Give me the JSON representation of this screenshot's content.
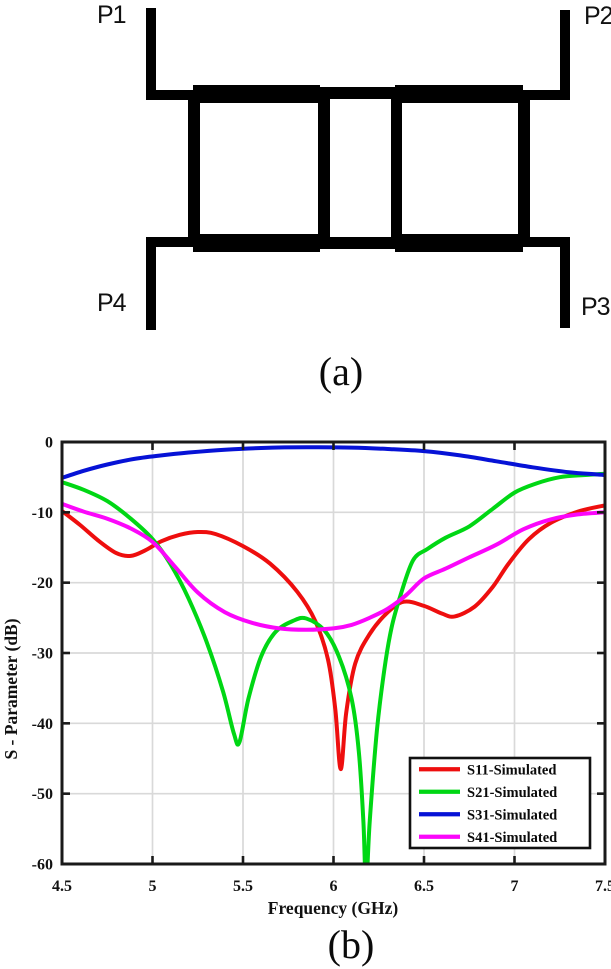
{
  "figure": {
    "panel_a": {
      "caption": "(a)",
      "description": "microstrip-coupler-layout",
      "ports": {
        "p1": "P1",
        "p2": "P2",
        "p3": "P3",
        "p4": "P4"
      }
    },
    "panel_b": {
      "caption": "(b)"
    }
  },
  "chart_data": {
    "type": "line",
    "title": "",
    "xlabel": "Frequency (GHz)",
    "ylabel": "S - Parameter (dB)",
    "xlim": [
      4.5,
      7.5
    ],
    "ylim": [
      -60,
      0
    ],
    "grid": true,
    "legend_position": "lower right",
    "x_ticks": [
      4.5,
      5,
      5.5,
      6,
      6.5,
      7,
      7.5
    ],
    "x_tick_labels": [
      "4.5",
      "5",
      "5.5",
      "6",
      "6.5",
      "7",
      "7.5"
    ],
    "y_ticks": [
      0,
      -10,
      -20,
      -30,
      -40,
      -50,
      -60
    ],
    "y_tick_labels": [
      "0",
      "-10",
      "-20",
      "-30",
      "-40",
      "-50",
      "-60"
    ],
    "colors": {
      "grid": "#d9d9d9",
      "axis": "#1a1a1a"
    },
    "series": [
      {
        "name": "S11-Simulated",
        "color": "#ee0e0e",
        "x": [
          4.5,
          4.6,
          4.7,
          4.8,
          4.88,
          4.96,
          5.05,
          5.15,
          5.25,
          5.35,
          5.5,
          5.65,
          5.8,
          5.9,
          5.97,
          6.01,
          6.04,
          6.07,
          6.12,
          6.2,
          6.3,
          6.39,
          6.5,
          6.6,
          6.67,
          6.78,
          6.88,
          6.97,
          7.08,
          7.2,
          7.35,
          7.5
        ],
        "y": [
          -9.8,
          -11.8,
          -14.0,
          -15.8,
          -16.2,
          -15.4,
          -14.1,
          -13.2,
          -12.8,
          -13.1,
          -14.8,
          -17.3,
          -21.3,
          -25.5,
          -31,
          -38,
          -46.5,
          -38.5,
          -31.5,
          -27.3,
          -24.2,
          -22.7,
          -23.3,
          -24.4,
          -24.8,
          -23.4,
          -20.6,
          -17.2,
          -13.8,
          -11.5,
          -9.9,
          -9.0
        ]
      },
      {
        "name": "S21-Simulated",
        "color": "#00d714",
        "x": [
          4.5,
          4.62,
          4.75,
          4.88,
          5.0,
          5.1,
          5.2,
          5.3,
          5.39,
          5.45,
          5.48,
          5.53,
          5.6,
          5.68,
          5.78,
          5.85,
          5.95,
          6.03,
          6.1,
          6.14,
          6.165,
          6.18,
          6.2,
          6.24,
          6.28,
          6.32,
          6.37,
          6.44,
          6.52,
          6.62,
          6.75,
          6.88,
          7.0,
          7.12,
          7.25,
          7.38,
          7.5
        ],
        "y": [
          -5.7,
          -6.8,
          -8.4,
          -10.9,
          -13.8,
          -17.4,
          -22.3,
          -28.5,
          -35.5,
          -41.5,
          -42.7,
          -36.5,
          -30.5,
          -27.0,
          -25.4,
          -25.1,
          -26.8,
          -30.5,
          -36.5,
          -44,
          -54,
          -63,
          -54,
          -41,
          -32.5,
          -26.5,
          -21.8,
          -16.8,
          -15.2,
          -13.6,
          -12.0,
          -9.5,
          -7.2,
          -5.9,
          -5.0,
          -4.7,
          -4.5
        ]
      },
      {
        "name": "S31-Simulated",
        "color": "#0612d6",
        "x": [
          4.5,
          4.62,
          4.75,
          4.9,
          5.05,
          5.2,
          5.4,
          5.6,
          5.85,
          6.1,
          6.3,
          6.5,
          6.7,
          6.9,
          7.1,
          7.3,
          7.45,
          7.5
        ],
        "y": [
          -5.1,
          -4.1,
          -3.2,
          -2.4,
          -1.9,
          -1.5,
          -1.1,
          -0.85,
          -0.75,
          -0.8,
          -1.0,
          -1.3,
          -1.9,
          -2.75,
          -3.6,
          -4.3,
          -4.6,
          -4.7
        ]
      },
      {
        "name": "S41-Simulated",
        "color": "#fb06fb",
        "x": [
          4.5,
          4.62,
          4.75,
          4.88,
          5.0,
          5.12,
          5.25,
          5.4,
          5.55,
          5.7,
          5.85,
          6.0,
          6.1,
          6.2,
          6.3,
          6.4,
          6.5,
          6.62,
          6.75,
          6.9,
          7.05,
          7.2,
          7.35,
          7.5
        ],
        "y": [
          -8.8,
          -9.9,
          -10.9,
          -12.3,
          -14.2,
          -17.6,
          -21.4,
          -24.2,
          -25.7,
          -26.5,
          -26.7,
          -26.5,
          -26.0,
          -25.0,
          -23.7,
          -21.8,
          -19.4,
          -18.0,
          -16.4,
          -14.6,
          -12.4,
          -11.0,
          -10.3,
          -10.0
        ]
      }
    ]
  }
}
